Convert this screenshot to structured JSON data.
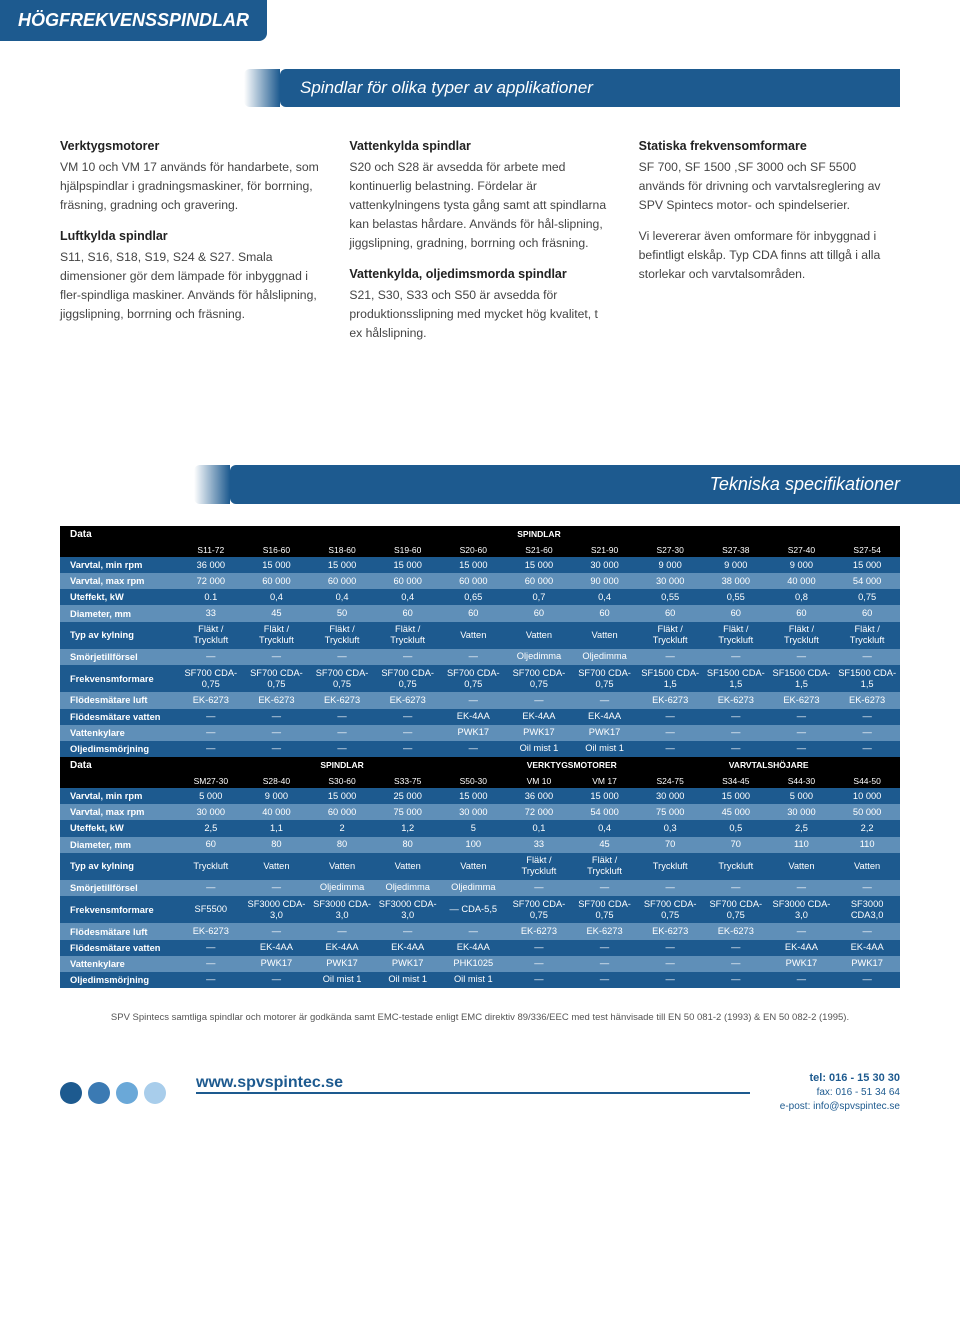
{
  "topBanner": "HÖGFREKVENSSPINDLAR",
  "banner1": "Spindlar för olika typer av applikationer",
  "columns": [
    {
      "parts": [
        {
          "h": "Verktygsmotorer",
          "p": "VM 10 och VM 17 används för handarbete, som hjälpspindlar i gradningsmaskiner, för borrning, fräsning, gradning och gravering."
        },
        {
          "h": "Luftkylda spindlar",
          "p": "S11, S16, S18, S19, S24 & S27. Smala dimensioner gör dem lämpade för inbyggnad i fler-spindliga maskiner. Används för hålslipning, jiggslipning, borrning och fräsning."
        }
      ]
    },
    {
      "parts": [
        {
          "h": "Vattenkylda spindlar",
          "p": "S20 och S28 är avsedda för arbete med kontinuerlig belastning. Fördelar är vattenkylningens tysta gång samt att spindlarna kan belastas hårdare. Används för hål-slipning, jiggslipning, gradning, borrning och fräsning."
        },
        {
          "h": "Vattenkylda, oljedimsmorda spindlar",
          "p": "S21, S30, S33 och S50 är avsedda för produktionsslipning med mycket hög kvalitet, t ex hålslipning."
        }
      ]
    },
    {
      "parts": [
        {
          "h": "Statiska frekvensomformare",
          "p": "SF 700, SF 1500 ,SF 3000 och SF 5500 används för drivning och varvtalsreglering av SPV Spintecs motor- och spindelserier."
        },
        {
          "h": "",
          "p": "Vi levererar även omformare för inbyggnad i befintligt elskåp. Typ CDA finns att tillgå i alla storlekar och varvtalsområden."
        }
      ]
    }
  ],
  "banner2": "Tekniska specifikationer",
  "t1": {
    "dataLabel": "Data",
    "groupLabel": "SPINDLAR",
    "cols": [
      "S11-72",
      "S16-60",
      "S18-60",
      "S19-60",
      "S20-60",
      "S21-60",
      "S21-90",
      "S27-30",
      "S27-38",
      "S27-40",
      "S27-54"
    ],
    "rows": [
      {
        "l": "Varvtal, min rpm",
        "c": [
          "36 000",
          "15 000",
          "15 000",
          "15 000",
          "15 000",
          "15 000",
          "30 000",
          "9 000",
          "9 000",
          "9 000",
          "15 000"
        ]
      },
      {
        "l": "Varvtal, max rpm",
        "c": [
          "72 000",
          "60 000",
          "60 000",
          "60 000",
          "60 000",
          "60 000",
          "90 000",
          "30 000",
          "38 000",
          "40 000",
          "54 000"
        ]
      },
      {
        "l": "Uteffekt, kW",
        "c": [
          "0.1",
          "0,4",
          "0,4",
          "0,4",
          "0,65",
          "0,7",
          "0,4",
          "0,55",
          "0,55",
          "0,8",
          "0,75"
        ]
      },
      {
        "l": "Diameter, mm",
        "c": [
          "33",
          "45",
          "50",
          "60",
          "60",
          "60",
          "60",
          "60",
          "60",
          "60",
          "60"
        ]
      },
      {
        "l": "Typ av kylning",
        "c": [
          "Fläkt / Tryckluft",
          "Fläkt / Tryckluft",
          "Fläkt / Tryckluft",
          "Fläkt / Tryckluft",
          "Vatten",
          "Vatten",
          "Vatten",
          "Fläkt / Tryckluft",
          "Fläkt / Tryckluft",
          "Fläkt / Tryckluft",
          "Fläkt / Tryckluft"
        ]
      },
      {
        "l": "Smörjetillförsel",
        "c": [
          "—",
          "—",
          "—",
          "—",
          "—",
          "Oljedimma",
          "Oljedimma",
          "—",
          "—",
          "—",
          "—"
        ]
      },
      {
        "l": "Frekvensmformare",
        "c": [
          "SF700 CDA-0,75",
          "SF700 CDA-0,75",
          "SF700 CDA-0,75",
          "SF700 CDA-0,75",
          "SF700 CDA-0,75",
          "SF700 CDA-0,75",
          "SF700 CDA-0,75",
          "SF1500 CDA-1,5",
          "SF1500 CDA-1,5",
          "SF1500 CDA-1,5",
          "SF1500 CDA-1,5"
        ]
      },
      {
        "l": "Flödesmätare luft",
        "c": [
          "EK-6273",
          "EK-6273",
          "EK-6273",
          "EK-6273",
          "—",
          "—",
          "—",
          "EK-6273",
          "EK-6273",
          "EK-6273",
          "EK-6273"
        ]
      },
      {
        "l": "Flödesmätare vatten",
        "c": [
          "—",
          "—",
          "—",
          "—",
          "EK-4AA",
          "EK-4AA",
          "EK-4AA",
          "—",
          "—",
          "—",
          "—"
        ]
      },
      {
        "l": "Vattenkylare",
        "c": [
          "—",
          "—",
          "—",
          "—",
          "PWK17",
          "PWK17",
          "PWK17",
          "—",
          "—",
          "—",
          "—"
        ]
      },
      {
        "l": "Oljedimsmörjning",
        "c": [
          "—",
          "—",
          "—",
          "—",
          "—",
          "Oil mist 1",
          "Oil mist 1",
          "—",
          "—",
          "—",
          "—"
        ]
      }
    ]
  },
  "t2": {
    "dataLabel": "Data",
    "groups": [
      "SPINDLAR",
      "VERKTYGSMOTORER",
      "VARVTALSHÖJARE"
    ],
    "cols": [
      "SM27-30",
      "S28-40",
      "S30-60",
      "S33-75",
      "S50-30",
      "VM 10",
      "VM 17",
      "S24-75",
      "S34-45",
      "S44-30",
      "S44-50"
    ],
    "rows": [
      {
        "l": "Varvtal, min rpm",
        "c": [
          "5 000",
          "9 000",
          "15 000",
          "25 000",
          "15 000",
          "36 000",
          "15 000",
          "30 000",
          "15 000",
          "5 000",
          "10 000"
        ]
      },
      {
        "l": "Varvtal, max rpm",
        "c": [
          "30 000",
          "40 000",
          "60 000",
          "75 000",
          "30 000",
          "72 000",
          "54 000",
          "75 000",
          "45 000",
          "30 000",
          "50 000"
        ]
      },
      {
        "l": "Uteffekt, kW",
        "c": [
          "2,5",
          "1,1",
          "2",
          "1,2",
          "5",
          "0,1",
          "0,4",
          "0,3",
          "0,5",
          "2,5",
          "2,2"
        ]
      },
      {
        "l": "Diameter, mm",
        "c": [
          "60",
          "80",
          "80",
          "80",
          "100",
          "33",
          "45",
          "70",
          "70",
          "110",
          "110"
        ]
      },
      {
        "l": "Typ av kylning",
        "c": [
          "Tryckluft",
          "Vatten",
          "Vatten",
          "Vatten",
          "Vatten",
          "Fläkt / Tryckluft",
          "Fläkt / Tryckluft",
          "Tryckluft",
          "Tryckluft",
          "Vatten",
          "Vatten"
        ]
      },
      {
        "l": "Smörjetillförsel",
        "c": [
          "—",
          "—",
          "Oljedimma",
          "Oljedimma",
          "Oljedimma",
          "—",
          "—",
          "—",
          "—",
          "—",
          "—"
        ]
      },
      {
        "l": "Frekvensmformare",
        "c": [
          "SF5500",
          "SF3000 CDA-3,0",
          "SF3000 CDA-3,0",
          "SF3000 CDA-3,0",
          "— CDA-5,5",
          "SF700 CDA-0,75",
          "SF700 CDA-0,75",
          "SF700 CDA-0,75",
          "SF700 CDA-0,75",
          "SF3000 CDA-3,0",
          "SF3000 CDA3,0"
        ]
      },
      {
        "l": "Flödesmätare luft",
        "c": [
          "EK-6273",
          "—",
          "—",
          "—",
          "—",
          "EK-6273",
          "EK-6273",
          "EK-6273",
          "EK-6273",
          "—",
          "—"
        ]
      },
      {
        "l": "Flödesmätare vatten",
        "c": [
          "—",
          "EK-4AA",
          "EK-4AA",
          "EK-4AA",
          "EK-4AA",
          "—",
          "—",
          "—",
          "—",
          "EK-4AA",
          "EK-4AA"
        ]
      },
      {
        "l": "Vattenkylare",
        "c": [
          "—",
          "PWK17",
          "PWK17",
          "PWK17",
          "PHK1025",
          "—",
          "—",
          "—",
          "—",
          "PWK17",
          "PWK17"
        ]
      },
      {
        "l": "Oljedimsmörjning",
        "c": [
          "—",
          "—",
          "Oil mist 1",
          "Oil mist 1",
          "Oil mist 1",
          "—",
          "—",
          "—",
          "—",
          "—",
          "—"
        ]
      }
    ]
  },
  "footnote": "SPV Spintecs samtliga spindlar och motorer är godkända samt EMC-testade enligt EMC direktiv 89/336/EEC med test hänvisade till EN 50 081-2 (1993) & EN 50 082-2 (1995).",
  "dotColors": [
    "#1d5a8f",
    "#3b7ab3",
    "#6aa8d8",
    "#a8cdeb"
  ],
  "website": "www.spvspintec.se",
  "contact": {
    "tel": "tel: 016 - 15 30 30",
    "fax": "fax: 016 - 51 34 64",
    "email": "e-post: info@spvspintec.se"
  },
  "rowShades": [
    "r-dark",
    "r-light",
    "r-dark",
    "r-light",
    "r-dark",
    "r-light",
    "r-dark",
    "r-light",
    "r-dark",
    "r-light",
    "r-dark"
  ],
  "labelColWidth": "118px"
}
